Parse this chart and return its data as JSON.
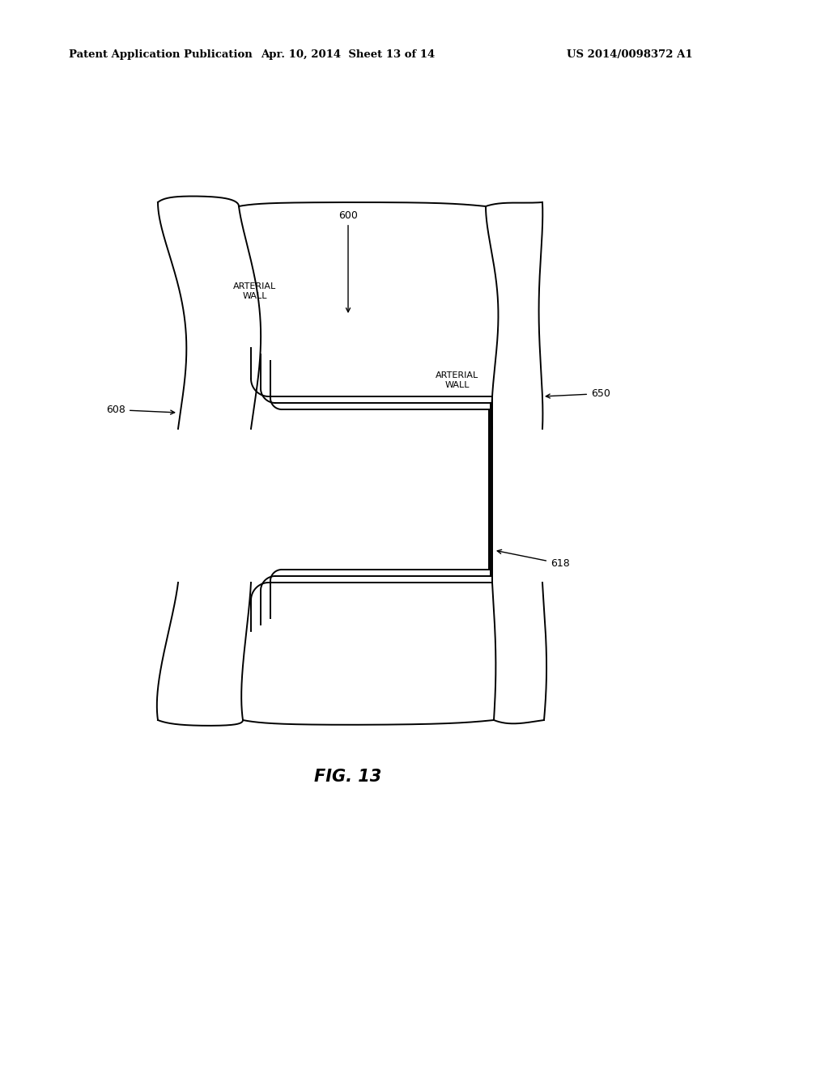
{
  "bg_color": "#ffffff",
  "line_color": "#000000",
  "line_width": 1.4,
  "header_left": "Patent Application Publication",
  "header_mid": "Apr. 10, 2014  Sheet 13 of 14",
  "header_right": "US 2014/0098372 A1",
  "fig_label": "FIG. 13"
}
